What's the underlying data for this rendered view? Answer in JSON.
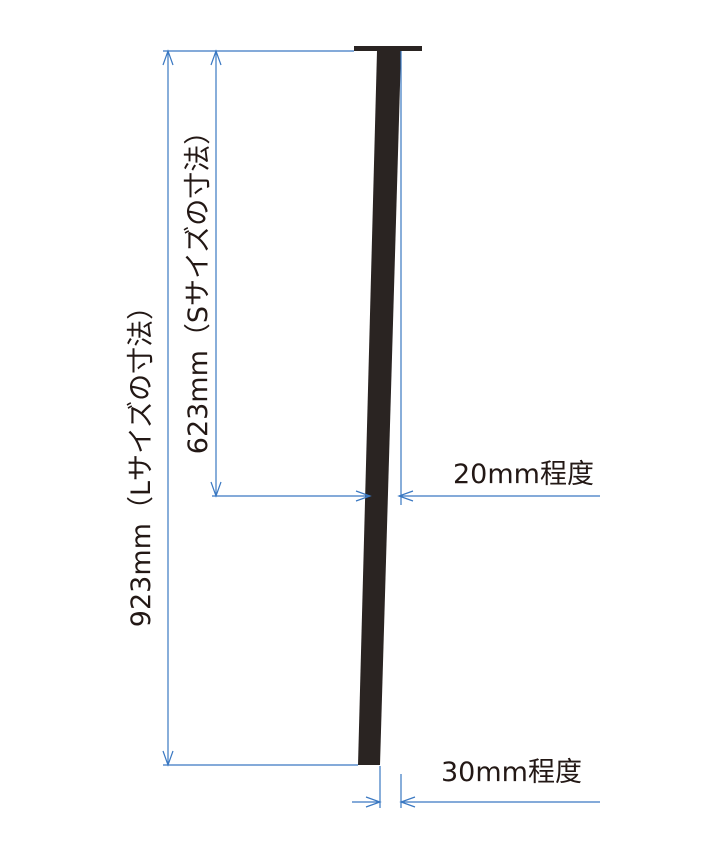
{
  "labels": {
    "l_size": "923mm（Lサイズの寸法）",
    "s_size": "623mm（Sサイズの寸法）",
    "width_mid": "20mm程度",
    "width_bottom": "30mm程度"
  },
  "colors": {
    "stake": "#2a2422",
    "dimension_line": "#3a78c2",
    "text": "#231815",
    "background": "#ffffff"
  }
}
